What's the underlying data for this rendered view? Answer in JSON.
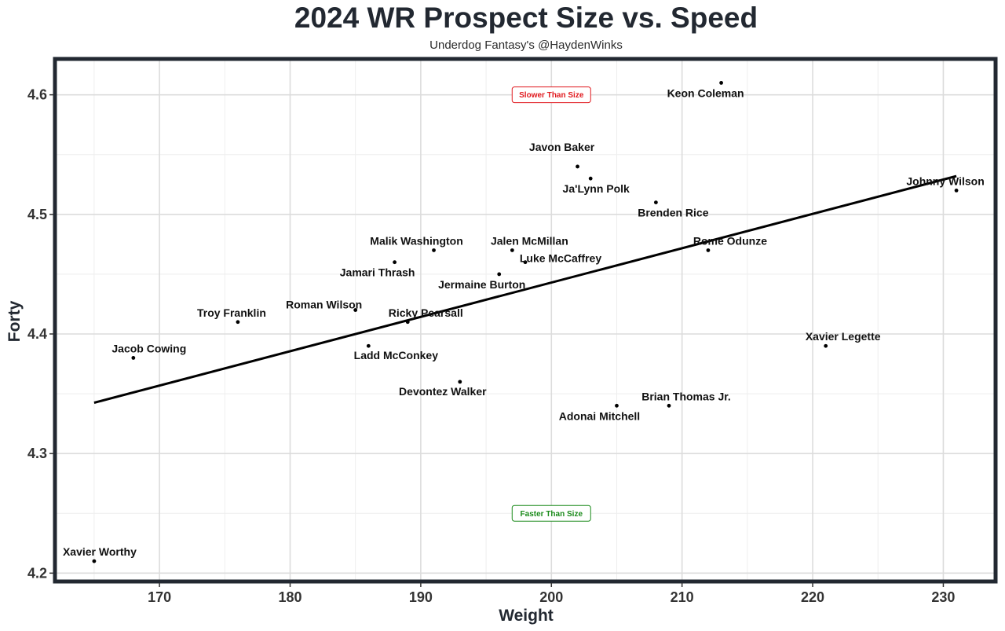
{
  "chart_data": {
    "type": "scatter",
    "title": "2024 WR Prospect Size vs. Speed",
    "subtitle": "Underdog Fantasy's @HaydenWinks",
    "xlabel": "Weight",
    "ylabel": "Forty",
    "xlim": [
      162,
      234
    ],
    "ylim": [
      4.193,
      4.63
    ],
    "xticks": [
      170,
      180,
      190,
      200,
      210,
      220,
      230
    ],
    "yticks": [
      4.2,
      4.3,
      4.4,
      4.5,
      4.6
    ],
    "grid": true,
    "points": [
      {
        "name": "Keon Coleman",
        "x": 213,
        "y": 4.61
      },
      {
        "name": "Javon Baker",
        "x": 202,
        "y": 4.54
      },
      {
        "name": "Ja'Lynn Polk",
        "x": 203,
        "y": 4.53
      },
      {
        "name": "Johnny Wilson",
        "x": 231,
        "y": 4.52
      },
      {
        "name": "Brenden Rice",
        "x": 208,
        "y": 4.51
      },
      {
        "name": "Malik Washington",
        "x": 191,
        "y": 4.47
      },
      {
        "name": "Jalen McMillan",
        "x": 197,
        "y": 4.47
      },
      {
        "name": "Rome Odunze",
        "x": 212,
        "y": 4.47
      },
      {
        "name": "Luke McCaffrey",
        "x": 198,
        "y": 4.46
      },
      {
        "name": "Jamari Thrash",
        "x": 188,
        "y": 4.46
      },
      {
        "name": "Jermaine Burton",
        "x": 196,
        "y": 4.45
      },
      {
        "name": "Troy Franklin",
        "x": 176,
        "y": 4.41
      },
      {
        "name": "Ricky Pearsall",
        "x": 189,
        "y": 4.41
      },
      {
        "name": "Roman Wilson",
        "x": 185,
        "y": 4.42
      },
      {
        "name": "Ladd McConkey",
        "x": 186,
        "y": 4.39
      },
      {
        "name": "Jacob Cowing",
        "x": 168,
        "y": 4.38
      },
      {
        "name": "Xavier Legette",
        "x": 221,
        "y": 4.39
      },
      {
        "name": "Devontez Walker",
        "x": 193,
        "y": 4.36
      },
      {
        "name": "Brian Thomas Jr.",
        "x": 209,
        "y": 4.34
      },
      {
        "name": "Adonai Mitchell",
        "x": 205,
        "y": 4.34
      },
      {
        "name": "Xavier Worthy",
        "x": 165,
        "y": 4.21
      }
    ],
    "trendline": {
      "x": [
        165,
        231
      ],
      "y": [
        4.3425,
        4.532
      ]
    },
    "annotations": [
      {
        "text": "Slower Than Size",
        "x": 200,
        "y": 4.6,
        "color": "#e0191e"
      },
      {
        "text": "Faster Than Size",
        "x": 200,
        "y": 4.25,
        "color": "#1a8a1a"
      }
    ]
  }
}
